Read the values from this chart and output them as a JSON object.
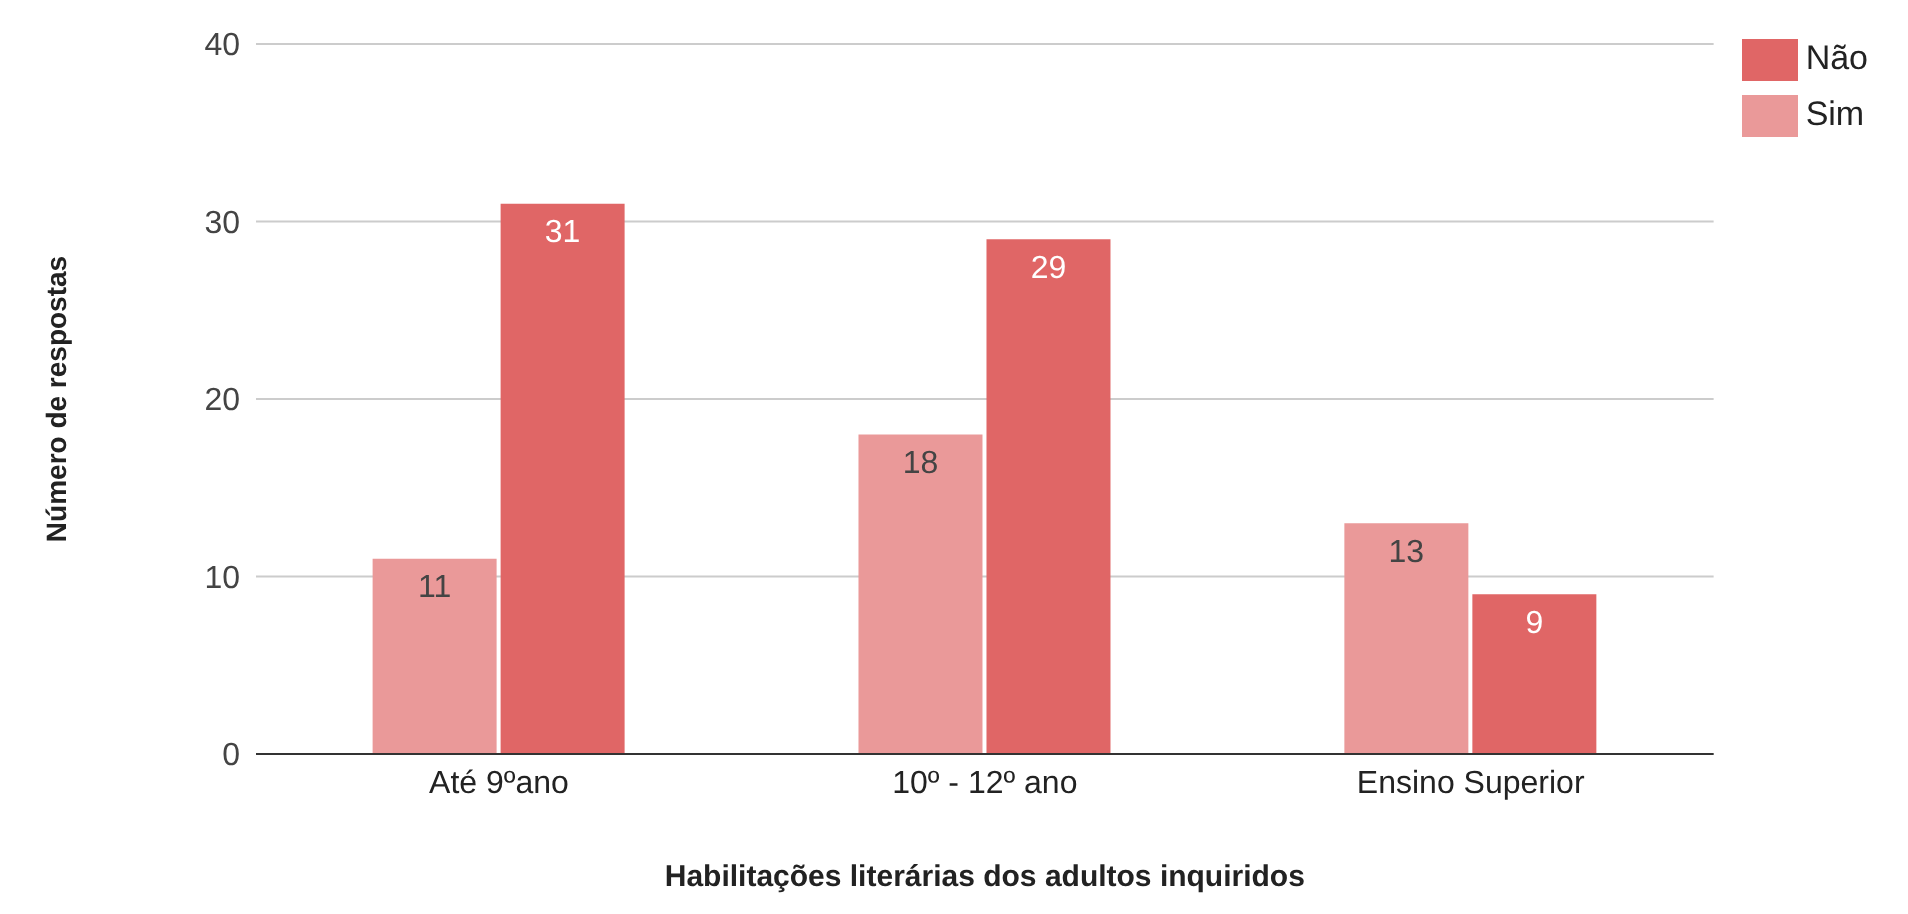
{
  "chart_data": {
    "type": "bar",
    "xlabel": "Habilitações literárias dos adultos inquiridos",
    "ylabel": "Número de respostas",
    "categories": [
      "Até 9ºano",
      "10º - 12º ano",
      "Ensino Superior"
    ],
    "series": [
      {
        "name": "Sim",
        "color": "#ea9999",
        "values": [
          11,
          18,
          13
        ]
      },
      {
        "name": "Não",
        "color": "#e06666",
        "values": [
          31,
          29,
          9
        ]
      }
    ],
    "ylim": [
      0,
      40
    ],
    "yticks": [
      0,
      10,
      20,
      30,
      40
    ],
    "grid": "y",
    "legend": "top right",
    "data_labels": true
  }
}
